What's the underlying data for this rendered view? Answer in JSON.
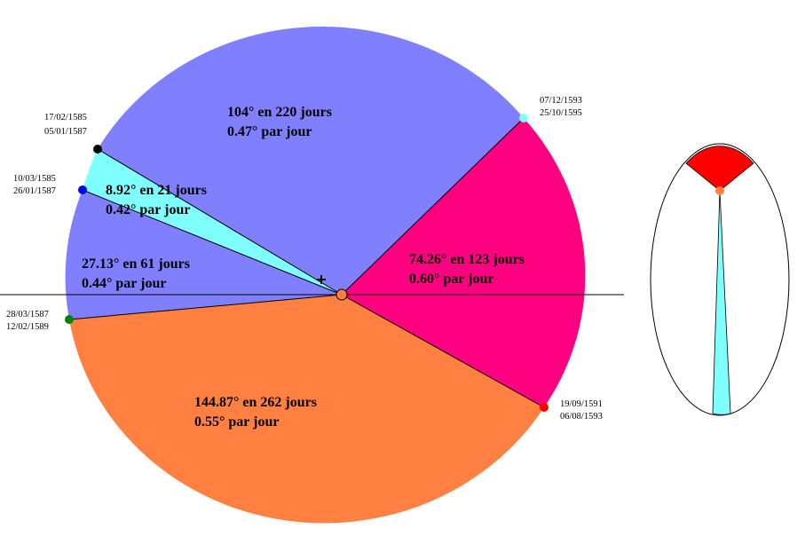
{
  "sectors": [
    {
      "line1": "104° en 220 jours",
      "line2": "0.47° par jour"
    },
    {
      "line1": "8.92° en 21 jours",
      "line2": "0.42° par jour"
    },
    {
      "line1": "27.13° en 61 jours",
      "line2": "0.44° par jour"
    },
    {
      "line1": "144.87° en 262 jours",
      "line2": "0.55° par jour"
    },
    {
      "line1": "74.26° en 123 jours",
      "line2": "0.60° par jour"
    }
  ],
  "points": [
    {
      "date1": "17/02/1585",
      "date2": "05/01/1587"
    },
    {
      "date1": "10/03/1585",
      "date2": "26/01/1587"
    },
    {
      "date1": "28/03/1587",
      "date2": "12/02/1589"
    },
    {
      "date1": "19/09/1591",
      "date2": "06/08/1593"
    },
    {
      "date1": "07/12/1593",
      "date2": "25/10/1595"
    }
  ]
}
